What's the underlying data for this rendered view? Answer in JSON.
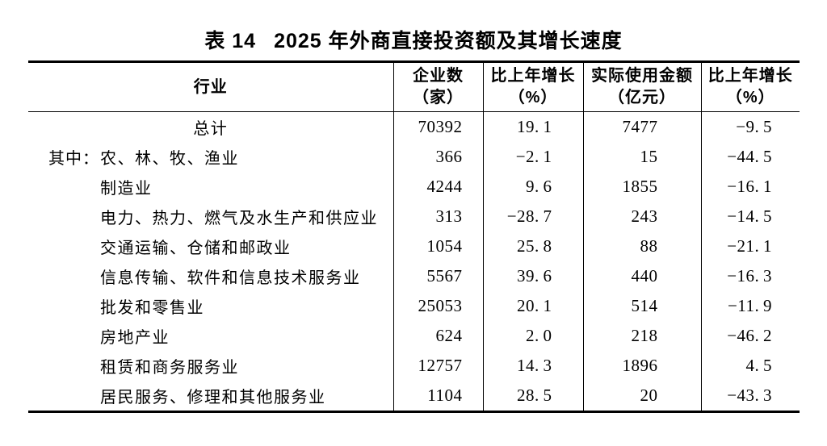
{
  "page": {
    "background_color": "#ffffff",
    "text_color": "#000000",
    "border_color": "#000000"
  },
  "title": {
    "prefix": "表 14",
    "text": "2025 年外商直接投资额及其增长速度"
  },
  "table": {
    "headers": [
      {
        "line1": "行业",
        "line2": ""
      },
      {
        "line1": "企业数",
        "line2": "（家）"
      },
      {
        "line1": "比上年增长",
        "line2": "（%）"
      },
      {
        "line1": "实际使用金额",
        "line2": "（亿元）"
      },
      {
        "line1": "比上年增长",
        "line2": "（%）"
      }
    ],
    "rows": [
      {
        "prefix": "",
        "industry": "总计",
        "align": "center",
        "enterprises": "70392",
        "enterprises_growth": "19.1",
        "amount": "7477",
        "amount_growth": "-9.5"
      },
      {
        "prefix": "其中：",
        "industry": "农、林、牧、渔业",
        "align": "left",
        "enterprises": "366",
        "enterprises_growth": "-2.1",
        "amount": "15",
        "amount_growth": "-44.5"
      },
      {
        "prefix": "",
        "industry": "制造业",
        "align": "left",
        "enterprises": "4244",
        "enterprises_growth": "9.6",
        "amount": "1855",
        "amount_growth": "-16.1"
      },
      {
        "prefix": "",
        "industry": "电力、热力、燃气及水生产和供应业",
        "align": "left",
        "enterprises": "313",
        "enterprises_growth": "-28.7",
        "amount": "243",
        "amount_growth": "-14.5"
      },
      {
        "prefix": "",
        "industry": "交通运输、仓储和邮政业",
        "align": "left",
        "enterprises": "1054",
        "enterprises_growth": "25.8",
        "amount": "88",
        "amount_growth": "-21.1"
      },
      {
        "prefix": "",
        "industry": "信息传输、软件和信息技术服务业",
        "align": "left",
        "enterprises": "5567",
        "enterprises_growth": "39.6",
        "amount": "440",
        "amount_growth": "-16.3"
      },
      {
        "prefix": "",
        "industry": "批发和零售业",
        "align": "left",
        "enterprises": "25053",
        "enterprises_growth": "20.1",
        "amount": "514",
        "amount_growth": "-11.9"
      },
      {
        "prefix": "",
        "industry": "房地产业",
        "align": "left",
        "enterprises": "624",
        "enterprises_growth": "2.0",
        "amount": "218",
        "amount_growth": "-46.2"
      },
      {
        "prefix": "",
        "industry": "租赁和商务服务业",
        "align": "left",
        "enterprises": "12757",
        "enterprises_growth": "14.3",
        "amount": "1896",
        "amount_growth": "4.5"
      },
      {
        "prefix": "",
        "industry": "居民服务、修理和其他服务业",
        "align": "left",
        "enterprises": "1104",
        "enterprises_growth": "28.5",
        "amount": "20",
        "amount_growth": "-43.3"
      }
    ]
  },
  "chart_data": {
    "type": "table",
    "title": "表14 2025年外商直接投资额及其增长速度",
    "columns": [
      "行业",
      "企业数（家）",
      "比上年增长（%）",
      "实际使用金额（亿元）",
      "比上年增长（%）"
    ],
    "rows": [
      [
        "总计",
        70392,
        19.1,
        7477,
        -9.5
      ],
      [
        "其中：农、林、牧、渔业",
        366,
        -2.1,
        15,
        -44.5
      ],
      [
        "制造业",
        4244,
        9.6,
        1855,
        -16.1
      ],
      [
        "电力、热力、燃气及水生产和供应业",
        313,
        -28.7,
        243,
        -14.5
      ],
      [
        "交通运输、仓储和邮政业",
        1054,
        25.8,
        88,
        -21.1
      ],
      [
        "信息传输、软件和信息技术服务业",
        5567,
        39.6,
        440,
        -16.3
      ],
      [
        "批发和零售业",
        25053,
        20.1,
        514,
        -11.9
      ],
      [
        "房地产业",
        624,
        2.0,
        218,
        -46.2
      ],
      [
        "租赁和商务服务业",
        12757,
        14.3,
        1896,
        4.5
      ],
      [
        "居民服务、修理和其他服务业",
        1104,
        28.5,
        20,
        -43.3
      ]
    ]
  }
}
